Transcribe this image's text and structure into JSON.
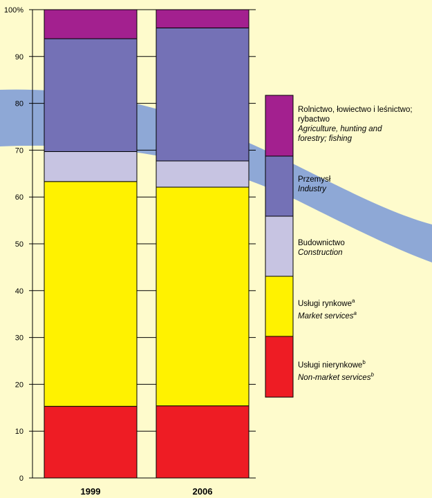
{
  "colors": {
    "background": "#fefbcc",
    "swoosh": "#8ea8d6"
  },
  "chart_data": {
    "type": "bar",
    "stacked": true,
    "categories": [
      "1999",
      "2006"
    ],
    "ylim": [
      0,
      100
    ],
    "yticks": [
      {
        "value": 0,
        "label": "0"
      },
      {
        "value": 10,
        "label": "10"
      },
      {
        "value": 20,
        "label": "20"
      },
      {
        "value": 30,
        "label": "30"
      },
      {
        "value": 40,
        "label": "40"
      },
      {
        "value": 50,
        "label": "50"
      },
      {
        "value": 60,
        "label": "60"
      },
      {
        "value": 70,
        "label": "70"
      },
      {
        "value": 80,
        "label": "80"
      },
      {
        "value": 90,
        "label": "90"
      },
      {
        "value": 100,
        "label": "100%"
      }
    ],
    "series": [
      {
        "key": "nonmarket",
        "name": "Usługi nierynkowe / Non-market services",
        "color": "#ee1c24",
        "values": [
          15.3,
          15.4
        ]
      },
      {
        "key": "market",
        "name": "Usługi rynkowe / Market services",
        "color": "#fff200",
        "values": [
          48.0,
          46.7
        ]
      },
      {
        "key": "construction",
        "name": "Budownictwo / Construction",
        "color": "#c7c4e2",
        "values": [
          6.4,
          5.6
        ]
      },
      {
        "key": "industry",
        "name": "Przemysł / Industry",
        "color": "#7471b6",
        "values": [
          24.1,
          28.4
        ]
      },
      {
        "key": "agriculture",
        "name": "Rolnictwo, łowiectwo i leśnictwo; rybactwo / Agriculture, hunting and forestry; fishing",
        "color": "#a3208f",
        "values": [
          6.2,
          3.9
        ]
      }
    ],
    "legend": {
      "agriculture": {
        "pl1": "Rolnictwo, łowiectwo i leśnictwo;",
        "pl2": "rybactwo",
        "en1": "Agriculture, hunting and",
        "en2": "forestry; fishing"
      },
      "industry": {
        "pl": "Przemysł",
        "en": "Industry"
      },
      "construction": {
        "pl": "Budownictwo",
        "en": "Construction"
      },
      "market": {
        "pl": "Usługi rynkowe",
        "en": "Market services",
        "note": "a"
      },
      "nonmarket": {
        "pl": "Usługi nierynkowe",
        "en": "Non-market services",
        "note": "b"
      }
    }
  }
}
